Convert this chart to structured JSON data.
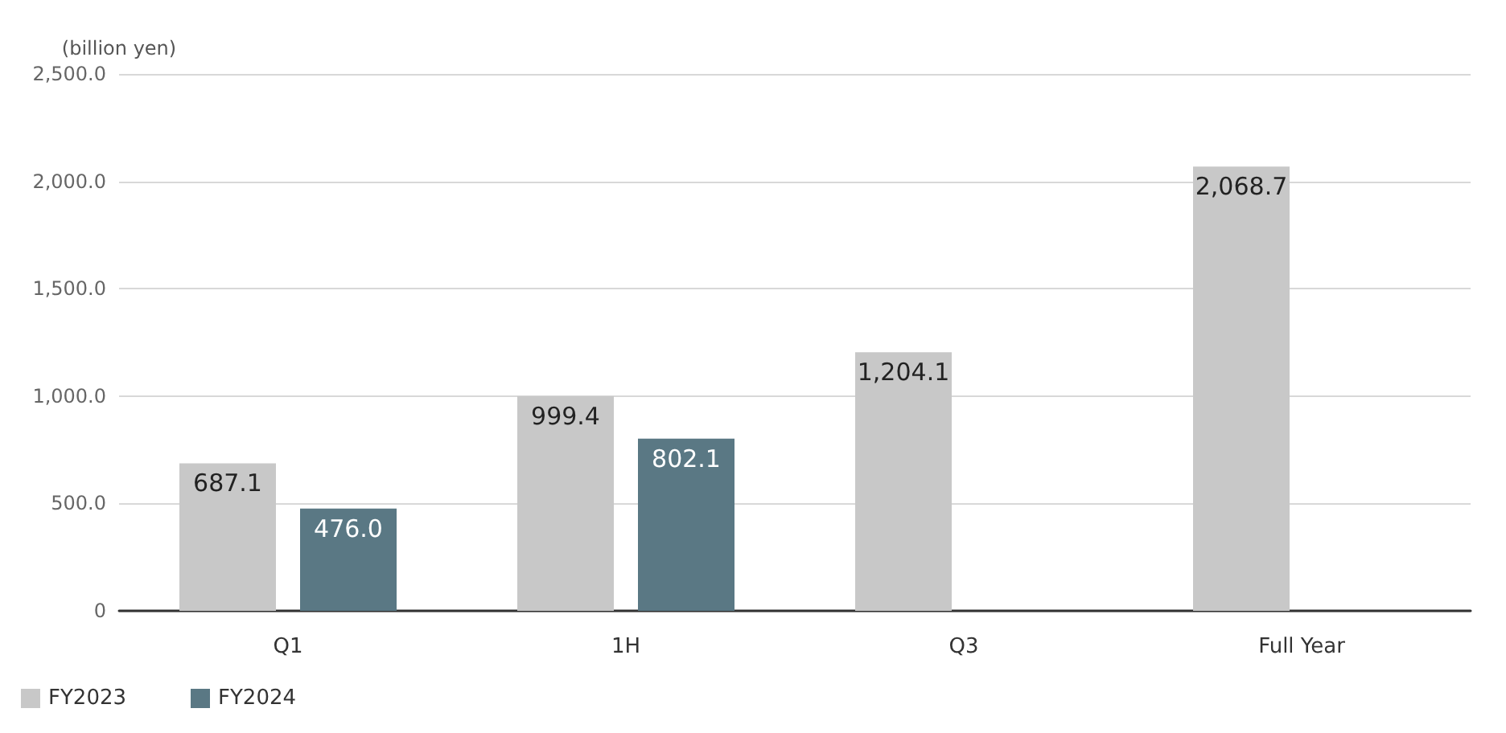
{
  "chart_data": {
    "type": "bar",
    "ylabel": "(billion yen)",
    "categories": [
      "Q1",
      "1H",
      "Q3",
      "Full Year"
    ],
    "series": [
      {
        "name": "FY2023",
        "color": "#c8c8c8",
        "values": [
          687.1,
          999.4,
          1204.1,
          2068.7
        ],
        "value_labels": [
          "687.1",
          "999.4",
          "1,204.1",
          "2,068.7"
        ]
      },
      {
        "name": "FY2024",
        "color": "#5a7884",
        "values": [
          476.0,
          802.1,
          null,
          null
        ],
        "value_labels": [
          "476.0",
          "802.1",
          null,
          null
        ]
      }
    ],
    "ylim": [
      0,
      2500
    ],
    "yticks": [
      {
        "value": 0,
        "label": "0"
      },
      {
        "value": 500,
        "label": "500.0"
      },
      {
        "value": 1000,
        "label": "1,000.0"
      },
      {
        "value": 1500,
        "label": "1,500.0"
      },
      {
        "value": 2000,
        "label": "2,000.0"
      },
      {
        "value": 2500,
        "label": "2,500.0"
      }
    ],
    "grid": "y",
    "legend": "bottom left"
  }
}
